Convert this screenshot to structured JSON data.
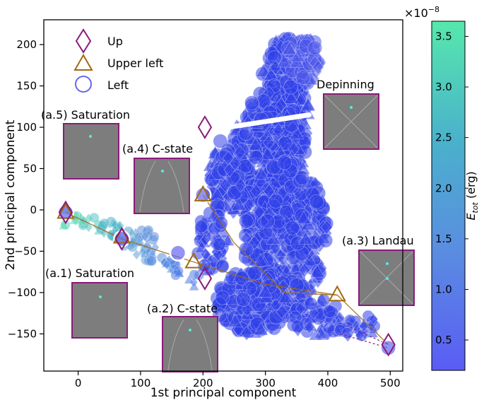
{
  "chart_data": {
    "type": "scatter",
    "xlabel": "1st principal component",
    "ylabel": "2nd principal component",
    "xlim": [
      -55,
      520
    ],
    "ylim": [
      -195,
      230
    ],
    "xticks": [
      0,
      100,
      200,
      300,
      400,
      500
    ],
    "yticks": [
      -150,
      -100,
      -50,
      0,
      50,
      100,
      150,
      200
    ],
    "grid": false,
    "legend": {
      "position": "top-left",
      "entries": [
        {
          "label": "Up",
          "marker": "diamond"
        },
        {
          "label": "Upper left",
          "marker": "triangle"
        },
        {
          "label": "Left",
          "marker": "circle"
        }
      ]
    },
    "colorbar": {
      "label": "E_tot (erg)",
      "label_main": "E",
      "label_sub": "tot",
      "label_rest": " (erg)",
      "multiplier": "×10",
      "multiplier_exp": "−8",
      "range": [
        0.2,
        3.65
      ],
      "ticks": [
        "0.5",
        "1.0",
        "1.5",
        "2.0",
        "2.5",
        "3.0",
        "3.5"
      ],
      "tick_values": [
        0.5,
        1.0,
        1.5,
        2.0,
        2.5,
        3.0,
        3.5
      ],
      "colors": [
        "#5a5cf5",
        "#5a8ee0",
        "#4ab0cc",
        "#56e8ac"
      ]
    },
    "colors": {
      "up": "#8b1a7a",
      "upper_left": "#a06a10",
      "left": "#6666ee",
      "cloud": "#2f3fe8"
    },
    "key_points": {
      "up": [
        [
          -20,
          -3
        ],
        [
          70,
          -35
        ],
        [
          203,
          100
        ],
        [
          203,
          -83
        ],
        [
          497,
          -163
        ]
      ],
      "upper_left": [
        [
          -20,
          -3
        ],
        [
          70,
          -33
        ],
        [
          200,
          18
        ],
        [
          185,
          -63
        ],
        [
          415,
          -103
        ]
      ],
      "left": [
        [
          -20,
          -3
        ],
        [
          70,
          -35
        ],
        [
          200,
          18
        ],
        [
          160,
          -52
        ],
        [
          497,
          -167
        ]
      ]
    },
    "annotations": [
      {
        "label": "(a.1) Saturation"
      },
      {
        "label": "(a.2) C-state"
      },
      {
        "label": "(a.3) Landau"
      },
      {
        "label": "(a.4) C-state"
      },
      {
        "label": "(a.5) Saturation"
      },
      {
        "label": "Depinning"
      }
    ]
  }
}
